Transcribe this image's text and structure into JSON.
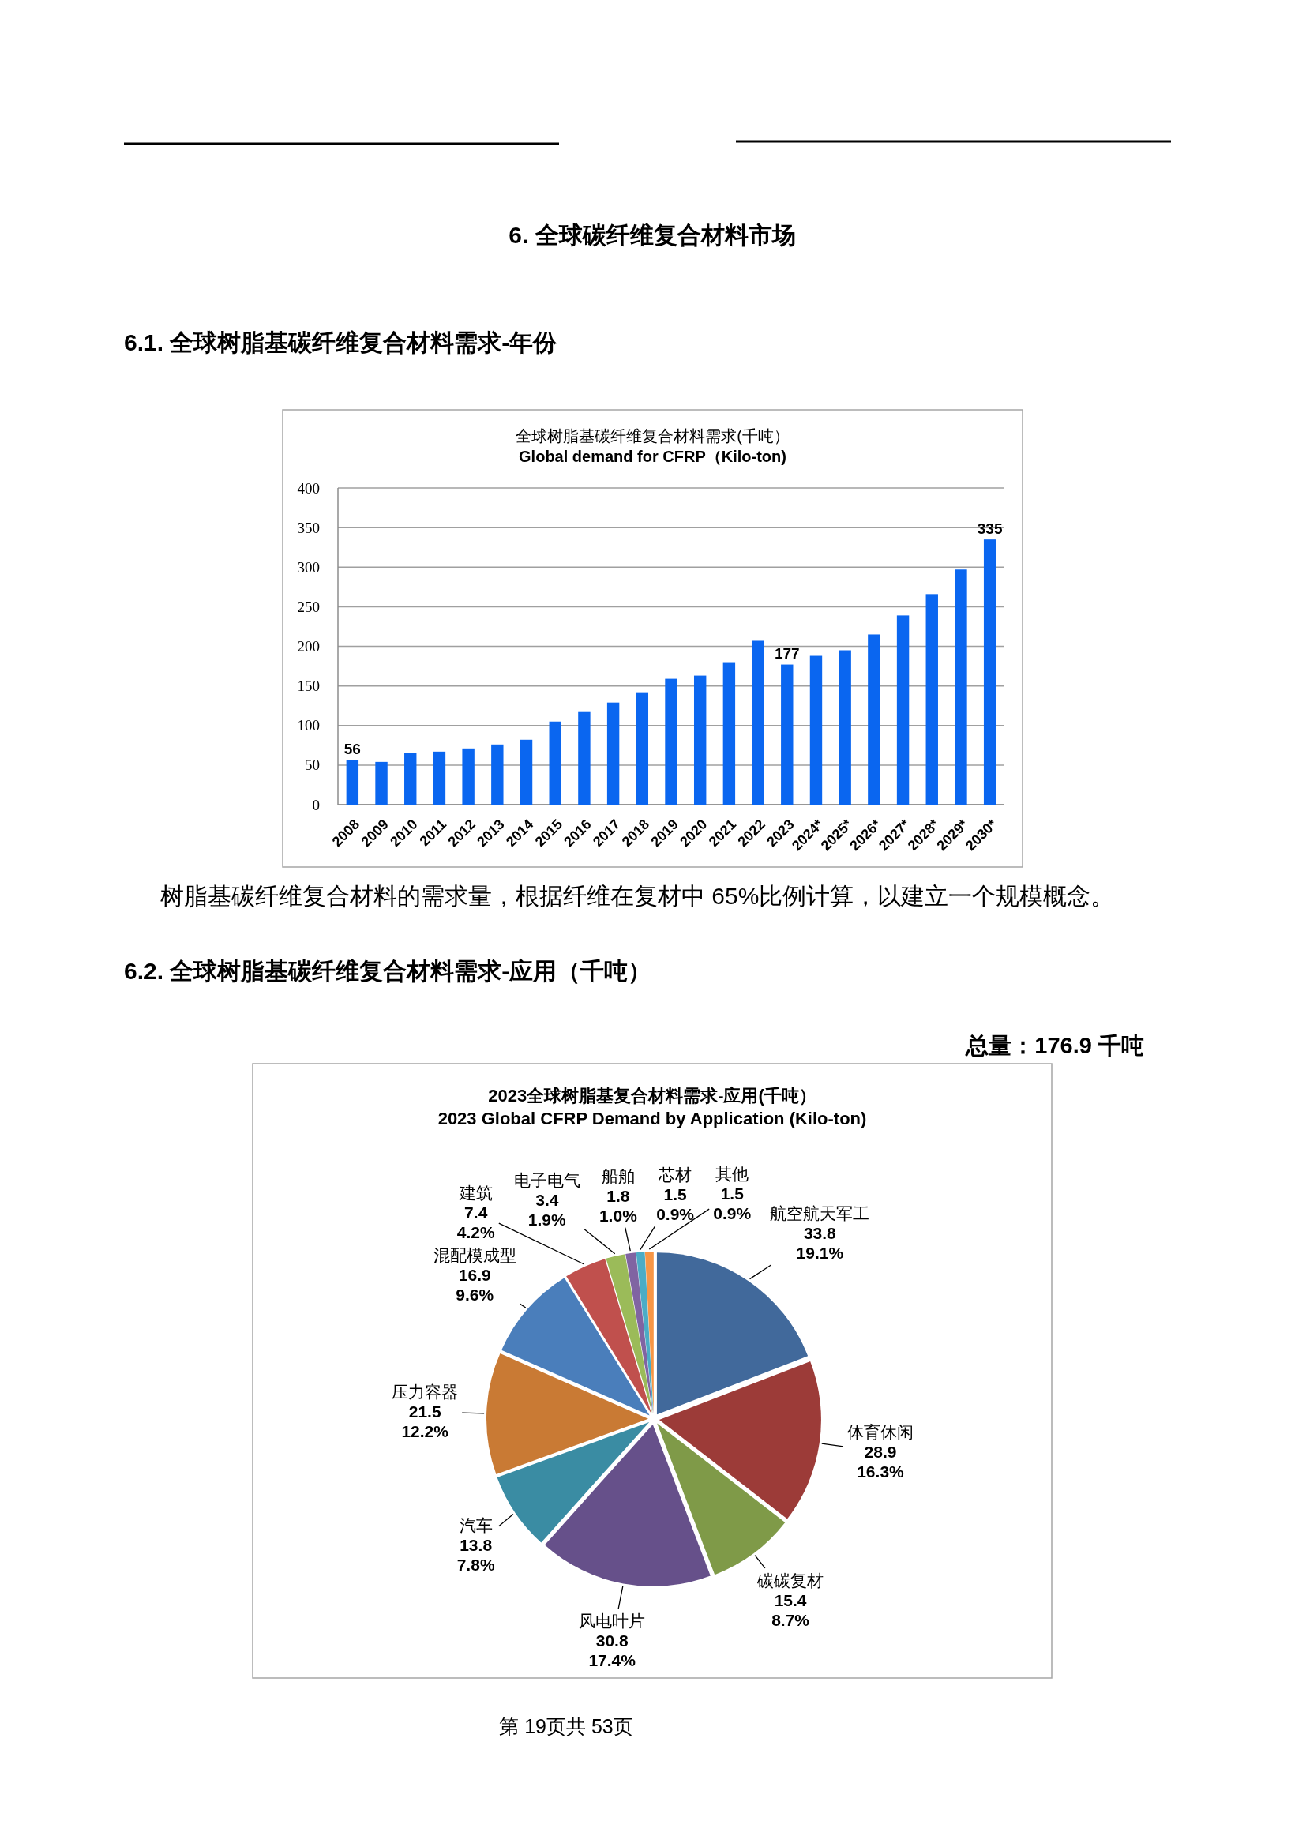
{
  "chart_data": [
    {
      "type": "bar",
      "title": "全球树脂基碳纤维复合材料需求(千吨）",
      "subtitle": "Global demand for CFRP（Kilo-ton)",
      "categories": [
        "2008",
        "2009",
        "2010",
        "2011",
        "2012",
        "2013",
        "2014",
        "2015",
        "2016",
        "2017",
        "2018",
        "2019",
        "2020",
        "2021",
        "2022",
        "2023",
        "2024*",
        "2025*",
        "2026*",
        "2027*",
        "2028*",
        "2029*",
        "2030*"
      ],
      "values": [
        56,
        54,
        65,
        67,
        71,
        76,
        82,
        105,
        117,
        129,
        142,
        159,
        163,
        180,
        207,
        177,
        188,
        195,
        215,
        239,
        266,
        297,
        335
      ],
      "color": "#0a66f0",
      "value_labels": [
        "56",
        null,
        null,
        null,
        null,
        null,
        null,
        null,
        null,
        null,
        null,
        null,
        null,
        null,
        null,
        "177",
        null,
        null,
        null,
        null,
        null,
        null,
        "335"
      ],
      "ylim": [
        0,
        400
      ],
      "yticks": [
        0,
        50,
        100,
        150,
        200,
        250,
        300,
        350,
        400
      ],
      "grid": "y",
      "annotations": [
        "6. 全球碳纤维复合材料市场",
        "6.1. 全球树脂基碳纤维复合材料需求-年份",
        "树脂基碳纤维复合材料的需求量，根据纤维在复材中 65%比例计算，以建立一个规模概念。"
      ]
    },
    {
      "type": "pie",
      "title": "2023全球树脂基复合材料需求-应用(千吨）",
      "subtitle": "2023 Global CFRP Demand by Application (Kilo-ton)",
      "categories": [
        "航空航天军工",
        "体育休闲",
        "碳碳复材",
        "风电叶片",
        "汽车",
        "压力容器",
        "混配模成型",
        "建筑",
        "电子电气",
        "船舶",
        "芯材",
        "其他"
      ],
      "values": [
        33.8,
        28.9,
        15.4,
        30.8,
        13.8,
        21.5,
        16.9,
        7.4,
        3.4,
        1.8,
        1.5,
        1.5
      ],
      "colors": [
        "#41699b",
        "#9c3b38",
        "#7f9a48",
        "#66508a",
        "#3a8ca3",
        "#c97a34",
        "#4a7ebb",
        "#c0504d",
        "#9bbb59",
        "#8064a2",
        "#4bacc6",
        "#f79646"
      ],
      "value_labels": [
        "33.8\n19.1%",
        "28.9\n16.3%",
        "15.4\n8.7%",
        "30.8\n17.4%",
        "13.8\n7.8%",
        "21.5\n12.2%",
        "16.9\n9.6%",
        "7.4\n4.2%",
        "3.4\n1.9%",
        "1.8\n1.0%",
        "1.5\n0.9%",
        "1.5\n0.9%"
      ],
      "annotations": [
        "6.2. 全球树脂基碳纤维复合材料需求-应用（千吨）",
        "总量：176.9 千吨",
        "第 19页共 53页"
      ]
    }
  ]
}
